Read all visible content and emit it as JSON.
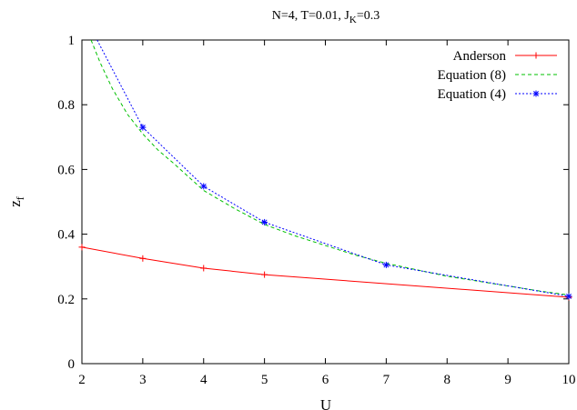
{
  "chart_data": {
    "type": "line",
    "title_parts": {
      "prefix": "N=4, T=0.01, J",
      "sub": "K",
      "suffix": "=0.3"
    },
    "xlabel": "U",
    "ylabel": {
      "main": "z",
      "sub": "f"
    },
    "xlim": [
      2,
      10
    ],
    "ylim": [
      0,
      1
    ],
    "x_ticks": [
      2,
      3,
      4,
      5,
      6,
      7,
      8,
      9,
      10
    ],
    "y_ticks": [
      0,
      0.2,
      0.4,
      0.6,
      0.8,
      1
    ],
    "x_tick_labels": [
      "2",
      "3",
      "4",
      "5",
      "6",
      "7",
      "8",
      "9",
      "10"
    ],
    "y_tick_labels": [
      "0",
      "0.2",
      "0.4",
      "0.6",
      "0.8",
      "1"
    ],
    "grid": false,
    "legend_position": "top-right",
    "series": [
      {
        "name": "Anderson",
        "color": "#ff0000",
        "style": "solid",
        "marker": "plus",
        "x": [
          2,
          3,
          4,
          5,
          10
        ],
        "y": [
          0.36,
          0.325,
          0.295,
          0.275,
          0.205
        ]
      },
      {
        "name": "Equation (8)",
        "color": "#00c000",
        "style": "dashed",
        "marker": "none",
        "x": [
          2.15,
          2.3,
          2.5,
          2.75,
          3,
          3.25,
          3.5,
          4,
          4.5,
          5,
          5.5,
          6,
          6.5,
          7,
          7.5,
          8,
          8.5,
          9,
          9.5,
          10
        ],
        "y": [
          1.0,
          0.93,
          0.85,
          0.77,
          0.71,
          0.66,
          0.62,
          0.535,
          0.48,
          0.43,
          0.395,
          0.365,
          0.335,
          0.31,
          0.29,
          0.27,
          0.255,
          0.24,
          0.225,
          0.212
        ]
      },
      {
        "name": "Equation (4)",
        "color": "#0000ff",
        "style": "dotted",
        "marker": "star",
        "x": [
          2.25,
          3,
          4,
          5,
          7,
          10
        ],
        "y": [
          1.0,
          0.73,
          0.548,
          0.437,
          0.305,
          0.208
        ]
      }
    ]
  }
}
